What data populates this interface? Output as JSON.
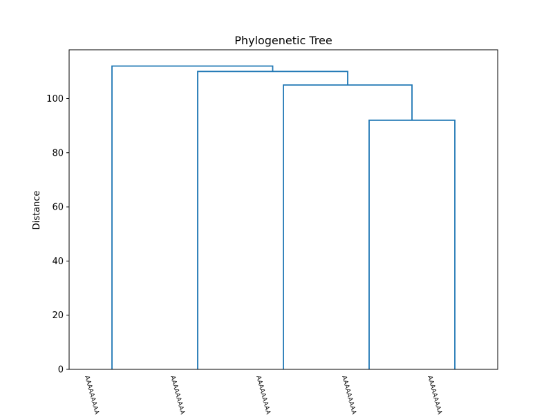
{
  "chart_data": {
    "type": "dendrogram",
    "title": "Phylogenetic Tree",
    "xlabel": "",
    "ylabel": "Distance",
    "ylim": [
      0,
      118
    ],
    "yticks": [
      0,
      20,
      40,
      60,
      80,
      100
    ],
    "leaves": [
      "AAAAAAAAAA",
      "AAAAAAAAAA",
      "AAAAAAAAAA",
      "AAAAAAAAAA",
      "AAAAAAAAAA"
    ],
    "merges": [
      {
        "left": 3,
        "right": 4,
        "height": 92
      },
      {
        "left": 2,
        "right": 5,
        "height": 105
      },
      {
        "left": 1,
        "right": 6,
        "height": 110
      },
      {
        "left": 0,
        "right": 7,
        "height": 112
      }
    ],
    "link_color": "#1f77b4",
    "grid": false
  }
}
